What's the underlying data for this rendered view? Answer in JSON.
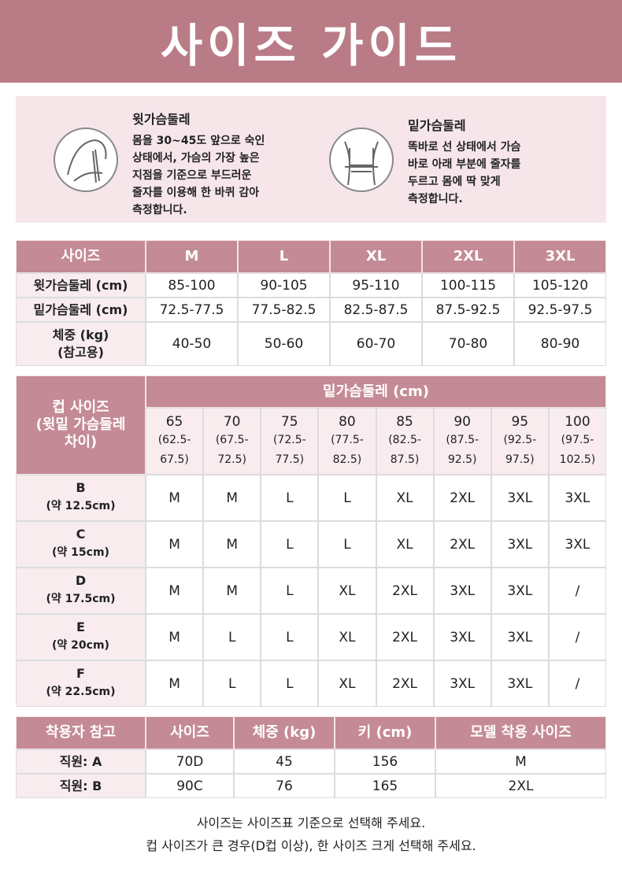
{
  "header": {
    "title": "사이즈 가이드"
  },
  "info": [
    {
      "title": "윗가슴둘레",
      "lines": [
        "몸을 30~45도 앞으로 숙인",
        "상태에서, 가슴의 가장 높은",
        "지점을 기준으로 부드러운",
        "줄자를 이용해 한 바퀴 감아",
        "측정합니다."
      ]
    },
    {
      "title": "밑가슴둘레",
      "lines": [
        "똑바로 선 상태에서 가슴",
        "바로 아래 부분에 줄자를",
        "두르고 몸에 딱 맞게",
        "측정합니다."
      ]
    }
  ],
  "size_table": {
    "header": [
      "사이즈",
      "M",
      "L",
      "XL",
      "2XL",
      "3XL"
    ],
    "rows": [
      {
        "label": [
          "윗가슴둘레 (cm)"
        ],
        "values": [
          "85-100",
          "90-105",
          "95-110",
          "100-115",
          "105-120"
        ]
      },
      {
        "label": [
          "밑가슴둘레 (cm)"
        ],
        "values": [
          "72.5-77.5",
          "77.5-82.5",
          "82.5-87.5",
          "87.5-92.5",
          "92.5-97.5"
        ]
      },
      {
        "label": [
          "체중 (kg)",
          "(참고용)"
        ],
        "values": [
          "40-50",
          "50-60",
          "60-70",
          "70-80",
          "80-90"
        ]
      }
    ]
  },
  "cup_table": {
    "corner": [
      "컵 사이즈",
      "(윗밑 가슴둘레",
      "차이)"
    ],
    "group": "밑가슴둘레 (cm)",
    "columns": [
      {
        "size": "65",
        "range": [
          "(62.5-",
          "67.5)"
        ]
      },
      {
        "size": "70",
        "range": [
          "(67.5-",
          "72.5)"
        ]
      },
      {
        "size": "75",
        "range": [
          "(72.5-",
          "77.5)"
        ]
      },
      {
        "size": "80",
        "range": [
          "(77.5-",
          "82.5)"
        ]
      },
      {
        "size": "85",
        "range": [
          "(82.5-",
          "87.5)"
        ]
      },
      {
        "size": "90",
        "range": [
          "(87.5-",
          "92.5)"
        ]
      },
      {
        "size": "95",
        "range": [
          "(92.5-",
          "97.5)"
        ]
      },
      {
        "size": "100",
        "range": [
          "(97.5-",
          "102.5)"
        ]
      }
    ],
    "rows": [
      {
        "cup": "B",
        "diff": "(약 12.5cm)",
        "sizes": [
          "M",
          "M",
          "L",
          "L",
          "XL",
          "2XL",
          "3XL",
          "3XL"
        ]
      },
      {
        "cup": "C",
        "diff": "(약 15cm)",
        "sizes": [
          "M",
          "M",
          "L",
          "L",
          "XL",
          "2XL",
          "3XL",
          "3XL"
        ]
      },
      {
        "cup": "D",
        "diff": "(약 17.5cm)",
        "sizes": [
          "M",
          "M",
          "L",
          "XL",
          "2XL",
          "3XL",
          "3XL",
          "/"
        ]
      },
      {
        "cup": "E",
        "diff": "(약 20cm)",
        "sizes": [
          "M",
          "L",
          "L",
          "XL",
          "2XL",
          "3XL",
          "3XL",
          "/"
        ]
      },
      {
        "cup": "F",
        "diff": "(약 22.5cm)",
        "sizes": [
          "M",
          "L",
          "L",
          "XL",
          "2XL",
          "3XL",
          "3XL",
          "/"
        ]
      }
    ]
  },
  "fit_table": {
    "header": [
      "착용자 참고",
      "사이즈",
      "체중 (kg)",
      "키 (cm)",
      "모델 착용 사이즈"
    ],
    "rows": [
      [
        "직원: A",
        "70D",
        "45",
        "156",
        "M"
      ],
      [
        "직원: B",
        "90C",
        "76",
        "165",
        "2XL"
      ]
    ]
  },
  "notes": [
    "사이즈는 사이즈표 기준으로 선택해 주세요.",
    "컵 사이즈가 큰 경우(D컵 이상), 한 사이즈 크게 선택해 주세요."
  ]
}
